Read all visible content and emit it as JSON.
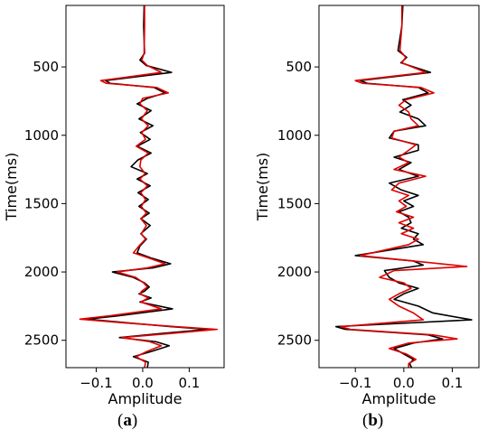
{
  "colors": {
    "trace1": "#000000",
    "trace2": "#e00000",
    "frame": "#000000"
  },
  "captions": [
    {
      "open": "(",
      "letter": "a",
      "close": ")"
    },
    {
      "open": "(",
      "letter": "b",
      "close": ")"
    }
  ],
  "chart_data": [
    {
      "type": "line",
      "id": "a",
      "xlabel": "Amplitude",
      "ylabel": "Time(ms)",
      "xlim": [
        -0.165,
        0.175
      ],
      "ylim": [
        2700,
        50
      ],
      "y_inverted": true,
      "xticks": [
        -0.1,
        0.0,
        0.1
      ],
      "xtick_labels": [
        "−0.1",
        "0.0",
        "0.1"
      ],
      "yticks": [
        500,
        1000,
        1500,
        2000,
        2500
      ],
      "ytick_labels": [
        "500",
        "1000",
        "1500",
        "2000",
        "2500"
      ],
      "grid": false,
      "series": [
        {
          "color": "#000000",
          "points": [
            [
              0.003,
              50
            ],
            [
              0.002,
              200
            ],
            [
              0.004,
              400
            ],
            [
              -0.006,
              450
            ],
            [
              0.008,
              490
            ],
            [
              0.062,
              540
            ],
            [
              -0.08,
              600
            ],
            [
              -0.07,
              620
            ],
            [
              0.024,
              650
            ],
            [
              0.048,
              690
            ],
            [
              0.01,
              730
            ],
            [
              -0.012,
              770
            ],
            [
              0.018,
              820
            ],
            [
              -0.008,
              880
            ],
            [
              0.022,
              930
            ],
            [
              -0.005,
              980
            ],
            [
              0.016,
              1030
            ],
            [
              -0.012,
              1080
            ],
            [
              0.018,
              1130
            ],
            [
              -0.01,
              1180
            ],
            [
              -0.025,
              1230
            ],
            [
              0.01,
              1280
            ],
            [
              -0.012,
              1320
            ],
            [
              0.016,
              1370
            ],
            [
              -0.01,
              1420
            ],
            [
              0.012,
              1470
            ],
            [
              -0.008,
              1520
            ],
            [
              0.014,
              1570
            ],
            [
              -0.004,
              1610
            ],
            [
              0.016,
              1660
            ],
            [
              -0.004,
              1720
            ],
            [
              0.008,
              1760
            ],
            [
              -0.006,
              1810
            ],
            [
              -0.012,
              1860
            ],
            [
              0.02,
              1900
            ],
            [
              0.06,
              1940
            ],
            [
              0.022,
              1970
            ],
            [
              -0.065,
              2000
            ],
            [
              -0.02,
              2040
            ],
            [
              0.004,
              2080
            ],
            [
              0.014,
              2110
            ],
            [
              0.004,
              2140
            ],
            [
              -0.008,
              2160
            ],
            [
              0.018,
              2190
            ],
            [
              -0.006,
              2220
            ],
            [
              0.064,
              2270
            ],
            [
              -0.05,
              2320
            ],
            [
              -0.12,
              2345
            ],
            [
              -0.04,
              2370
            ],
            [
              0.06,
              2400
            ],
            [
              0.14,
              2420
            ],
            [
              0.04,
              2450
            ],
            [
              -0.05,
              2480
            ],
            [
              0.028,
              2510
            ],
            [
              0.057,
              2540
            ],
            [
              0.02,
              2580
            ],
            [
              -0.02,
              2620
            ],
            [
              0.012,
              2660
            ],
            [
              0.01,
              2700
            ]
          ]
        },
        {
          "color": "#e00000",
          "points": [
            [
              0.004,
              50
            ],
            [
              0.004,
              200
            ],
            [
              0.003,
              400
            ],
            [
              -0.002,
              450
            ],
            [
              0.01,
              490
            ],
            [
              0.04,
              540
            ],
            [
              -0.09,
              600
            ],
            [
              -0.078,
              620
            ],
            [
              0.03,
              650
            ],
            [
              0.055,
              690
            ],
            [
              0.0,
              730
            ],
            [
              -0.006,
              770
            ],
            [
              0.01,
              820
            ],
            [
              -0.003,
              880
            ],
            [
              0.012,
              930
            ],
            [
              -0.002,
              980
            ],
            [
              0.006,
              1030
            ],
            [
              -0.014,
              1080
            ],
            [
              0.012,
              1130
            ],
            [
              -0.004,
              1180
            ],
            [
              -0.006,
              1230
            ],
            [
              0.005,
              1280
            ],
            [
              -0.006,
              1320
            ],
            [
              0.01,
              1370
            ],
            [
              -0.004,
              1420
            ],
            [
              0.006,
              1470
            ],
            [
              -0.003,
              1520
            ],
            [
              0.008,
              1570
            ],
            [
              -0.004,
              1610
            ],
            [
              0.008,
              1660
            ],
            [
              -0.003,
              1720
            ],
            [
              0.006,
              1760
            ],
            [
              -0.008,
              1810
            ],
            [
              -0.02,
              1860
            ],
            [
              0.015,
              1900
            ],
            [
              0.048,
              1940
            ],
            [
              0.01,
              1970
            ],
            [
              -0.055,
              2000
            ],
            [
              -0.015,
              2040
            ],
            [
              0.002,
              2080
            ],
            [
              0.01,
              2110
            ],
            [
              -0.002,
              2140
            ],
            [
              -0.006,
              2160
            ],
            [
              0.012,
              2190
            ],
            [
              -0.004,
              2220
            ],
            [
              0.04,
              2270
            ],
            [
              -0.07,
              2320
            ],
            [
              -0.135,
              2345
            ],
            [
              -0.05,
              2370
            ],
            [
              0.07,
              2400
            ],
            [
              0.16,
              2420
            ],
            [
              0.06,
              2450
            ],
            [
              -0.045,
              2480
            ],
            [
              0.015,
              2510
            ],
            [
              0.04,
              2540
            ],
            [
              0.01,
              2580
            ],
            [
              -0.014,
              2620
            ],
            [
              0.006,
              2660
            ],
            [
              0.004,
              2700
            ]
          ]
        }
      ]
    },
    {
      "type": "line",
      "id": "b",
      "xlabel": "Amplitude",
      "ylabel": "Time(ms)",
      "xlim": [
        -0.175,
        0.155
      ],
      "ylim": [
        2700,
        50
      ],
      "y_inverted": true,
      "xticks": [
        -0.1,
        0.0,
        0.1
      ],
      "xtick_labels": [
        "−0.1",
        "0.0",
        "0.1"
      ],
      "yticks": [
        500,
        1000,
        1500,
        2000,
        2500
      ],
      "ytick_labels": [
        "500",
        "1000",
        "1500",
        "2000",
        "2500"
      ],
      "grid": false,
      "series": [
        {
          "color": "#000000",
          "points": [
            [
              -0.002,
              50
            ],
            [
              -0.004,
              200
            ],
            [
              -0.012,
              380
            ],
            [
              0.006,
              430
            ],
            [
              -0.006,
              470
            ],
            [
              0.055,
              540
            ],
            [
              -0.09,
              600
            ],
            [
              -0.075,
              620
            ],
            [
              0.03,
              650
            ],
            [
              0.05,
              690
            ],
            [
              -0.002,
              740
            ],
            [
              0.015,
              780
            ],
            [
              -0.008,
              830
            ],
            [
              0.03,
              880
            ],
            [
              0.045,
              930
            ],
            [
              -0.02,
              970
            ],
            [
              -0.03,
              1020
            ],
            [
              0.03,
              1070
            ],
            [
              0.03,
              1110
            ],
            [
              -0.02,
              1160
            ],
            [
              0.015,
              1200
            ],
            [
              -0.01,
              1250
            ],
            [
              0.03,
              1300
            ],
            [
              -0.03,
              1350
            ],
            [
              -0.005,
              1400
            ],
            [
              0.03,
              1440
            ],
            [
              0.0,
              1480
            ],
            [
              0.02,
              1520
            ],
            [
              -0.01,
              1560
            ],
            [
              0.01,
              1600
            ],
            [
              0.015,
              1640
            ],
            [
              -0.005,
              1680
            ],
            [
              0.03,
              1720
            ],
            [
              0.02,
              1760
            ],
            [
              0.04,
              1800
            ],
            [
              -0.1,
              1880
            ],
            [
              0.02,
              1920
            ],
            [
              0.04,
              1950
            ],
            [
              -0.04,
              1990
            ],
            [
              -0.03,
              2040
            ],
            [
              -0.01,
              2080
            ],
            [
              0.03,
              2120
            ],
            [
              0.0,
              2160
            ],
            [
              -0.02,
              2200
            ],
            [
              0.03,
              2250
            ],
            [
              0.06,
              2300
            ],
            [
              0.14,
              2350
            ],
            [
              -0.14,
              2400
            ],
            [
              -0.12,
              2420
            ],
            [
              0.05,
              2460
            ],
            [
              0.08,
              2490
            ],
            [
              0.02,
              2520
            ],
            [
              -0.02,
              2560
            ],
            [
              0.0,
              2600
            ],
            [
              0.02,
              2640
            ],
            [
              0.012,
              2670
            ],
            [
              0.016,
              2700
            ]
          ]
        },
        {
          "color": "#e00000",
          "points": [
            [
              -0.004,
              50
            ],
            [
              -0.004,
              200
            ],
            [
              -0.008,
              380
            ],
            [
              0.004,
              430
            ],
            [
              -0.004,
              470
            ],
            [
              0.045,
              540
            ],
            [
              -0.1,
              600
            ],
            [
              -0.085,
              620
            ],
            [
              0.035,
              650
            ],
            [
              0.062,
              690
            ],
            [
              0.005,
              740
            ],
            [
              -0.01,
              780
            ],
            [
              0.01,
              830
            ],
            [
              0.015,
              880
            ],
            [
              0.03,
              930
            ],
            [
              -0.02,
              970
            ],
            [
              -0.025,
              1020
            ],
            [
              0.025,
              1070
            ],
            [
              0.01,
              1110
            ],
            [
              -0.01,
              1160
            ],
            [
              0.01,
              1200
            ],
            [
              -0.02,
              1250
            ],
            [
              0.045,
              1300
            ],
            [
              -0.01,
              1350
            ],
            [
              -0.025,
              1400
            ],
            [
              0.01,
              1440
            ],
            [
              -0.01,
              1480
            ],
            [
              0.005,
              1520
            ],
            [
              -0.015,
              1560
            ],
            [
              0.02,
              1600
            ],
            [
              -0.01,
              1640
            ],
            [
              0.02,
              1680
            ],
            [
              -0.005,
              1720
            ],
            [
              0.03,
              1760
            ],
            [
              0.01,
              1800
            ],
            [
              -0.09,
              1880
            ],
            [
              0.02,
              1920
            ],
            [
              0.13,
              1960
            ],
            [
              -0.02,
              1990
            ],
            [
              -0.05,
              2040
            ],
            [
              0.0,
              2080
            ],
            [
              0.015,
              2120
            ],
            [
              -0.01,
              2160
            ],
            [
              -0.03,
              2200
            ],
            [
              -0.01,
              2250
            ],
            [
              0.02,
              2300
            ],
            [
              0.04,
              2350
            ],
            [
              -0.13,
              2400
            ],
            [
              -0.11,
              2420
            ],
            [
              0.06,
              2460
            ],
            [
              0.11,
              2490
            ],
            [
              0.01,
              2520
            ],
            [
              -0.03,
              2560
            ],
            [
              0.005,
              2600
            ],
            [
              0.025,
              2640
            ],
            [
              0.01,
              2670
            ],
            [
              0.01,
              2700
            ]
          ]
        }
      ]
    }
  ]
}
